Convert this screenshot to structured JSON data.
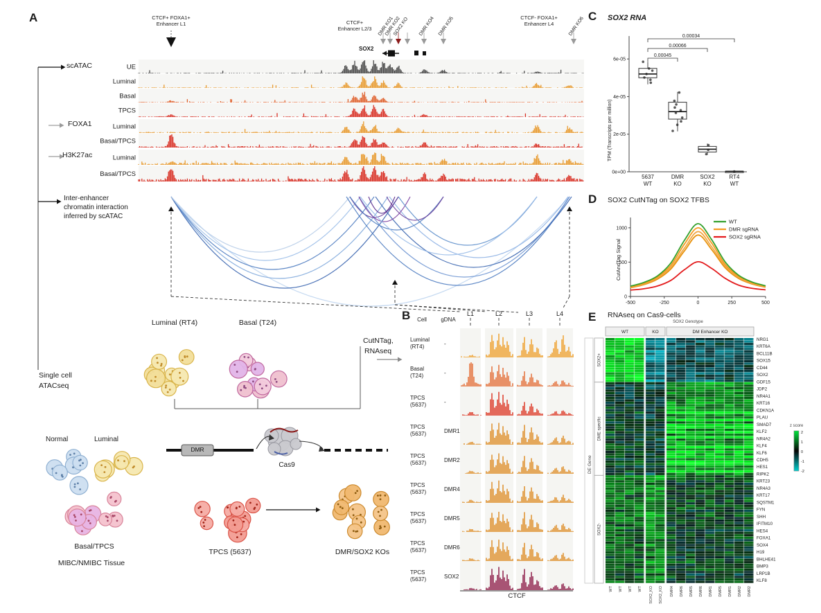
{
  "panelA": {
    "label": "A",
    "enhancers": [
      {
        "line1": "CTCF+ FOXA1+",
        "line2": "Enhancer L1"
      },
      {
        "line1": "CTCF+",
        "line2": "Enhancer L2/3"
      },
      {
        "line1": "CTCF- FOXA1+",
        "line2": "Enhancer L4"
      }
    ],
    "ko_labels": [
      "DMR KO1",
      "DMR KO2",
      "SOX2 KO",
      "DMR KO4",
      "DMR KO5",
      "DMR KO6"
    ],
    "gene_label": "SOX2",
    "track_groups": [
      {
        "name": "scATAC",
        "rows": [
          "UE",
          "Luminal",
          "Basal",
          "TPCS"
        ]
      },
      {
        "name": "FOXA1",
        "rows": [
          "Luminal",
          "Basal/TPCS"
        ]
      },
      {
        "name": "H3K27ac",
        "rows": [
          "Luminal",
          "Basal/TPCS"
        ]
      }
    ],
    "track_row_colors": [
      "#4a4a4a",
      "#E89A2E",
      "#E0622E",
      "#D93025",
      "#E89A2E",
      "#D93025",
      "#E89A2E",
      "#D93025"
    ],
    "interaction_label": [
      "Inter-enhancer",
      "chromatin interaction",
      "inferred by scATAC"
    ],
    "l_labels": [
      "L1",
      "L2",
      "L3",
      "L4"
    ],
    "schematic": {
      "luminal_rt4": "Luminal (RT4)",
      "basal_t24": "Basal (T24)",
      "cutntag": "CutNTag,",
      "rnaseq": "RNAseq",
      "single_cell": [
        "Single cell",
        "ATACseq"
      ],
      "normal": "Normal",
      "luminal": "Luminal",
      "basal_tpcs": "Basal/TPCS",
      "tissue": "MIBC/NMIBC Tissue",
      "dmr_box": "DMR",
      "cas9": "Cas9",
      "tpcs": "TPCS (5637)",
      "kos": "DMR/SOX2 KOs"
    }
  },
  "panelB": {
    "label": "B",
    "headers": {
      "cell": "Cell",
      "gdna": "gDNA"
    },
    "rows": [
      {
        "cell": [
          "Luminal",
          "(RT4)"
        ],
        "gdna": "-",
        "color": "#EFA12F",
        "strengths": [
          0.08,
          1.0,
          0.85,
          0.9
        ]
      },
      {
        "cell": [
          "Basal",
          "(T24)"
        ],
        "gdna": "-",
        "color": "#E4703A",
        "strengths": [
          1.0,
          0.9,
          0.6,
          0.25
        ]
      },
      {
        "cell": [
          "TPCS",
          "(5637)"
        ],
        "gdna": "-",
        "color": "#DD3A28",
        "strengths": [
          0.12,
          1.0,
          0.55,
          0.2
        ]
      },
      {
        "cell": [
          "TPCS",
          "(5637)"
        ],
        "gdna": "DMR1",
        "color": "#DE8F2A",
        "strengths": [
          0.1,
          0.9,
          0.8,
          0.35
        ]
      },
      {
        "cell": [
          "TPCS",
          "(5637)"
        ],
        "gdna": "DMR2",
        "color": "#DE8F2A",
        "strengths": [
          0.1,
          0.85,
          0.75,
          0.3
        ]
      },
      {
        "cell": [
          "TPCS",
          "(5637)"
        ],
        "gdna": "DMR4",
        "color": "#DE8F2A",
        "strengths": [
          0.1,
          0.9,
          0.7,
          0.3
        ]
      },
      {
        "cell": [
          "TPCS",
          "(5637)"
        ],
        "gdna": "DMR5",
        "color": "#DE8F2A",
        "strengths": [
          0.1,
          0.85,
          0.8,
          0.35
        ]
      },
      {
        "cell": [
          "TPCS",
          "(5637)"
        ],
        "gdna": "DMR6",
        "color": "#DE8F2A",
        "strengths": [
          0.1,
          0.9,
          0.75,
          0.3
        ]
      },
      {
        "cell": [
          "TPCS",
          "(5637)"
        ],
        "gdna": "SOX2",
        "color": "#8E1F4B",
        "strengths": [
          0.06,
          0.95,
          0.85,
          0.25
        ]
      }
    ],
    "footer": "CTCF"
  },
  "panelC": {
    "label": "C"
  },
  "panelD": {
    "label": "D"
  },
  "panelE": {
    "label": "E"
  },
  "chart_data": [
    {
      "id": "sox2_rna_boxplot",
      "type": "boxplot",
      "title": "SOX2 RNA",
      "ylabel": "TPM (Transcripts per million)",
      "ytick_labels": [
        "6e-05",
        "4e-05",
        "2e-05",
        "0e+00"
      ],
      "ytick_values": [
        6e-05,
        4e-05,
        2e-05,
        0
      ],
      "ylim": [
        0,
        7e-05
      ],
      "groups": [
        {
          "label_line1": "5637",
          "label_line2": "WT",
          "median": 5.2e-05,
          "q1": 5e-05,
          "q3": 5.5e-05,
          "whisker_low": 4.65e-05,
          "whisker_high": 5.85e-05,
          "points": [
            4.7e-05,
            4.9e-05,
            5.05e-05,
            5.2e-05,
            5.35e-05,
            5.5e-05,
            5.85e-05
          ]
        },
        {
          "label_line1": "DMR",
          "label_line2": "KO",
          "median": 3.2e-05,
          "q1": 2.8e-05,
          "q3": 3.7e-05,
          "whisker_low": 2.15e-05,
          "whisker_high": 4.25e-05,
          "points": [
            2.2e-05,
            2.5e-05,
            2.7e-05,
            2.9e-05,
            3.1e-05,
            3.25e-05,
            3.4e-05,
            3.6e-05,
            3.8e-05,
            4.2e-05
          ]
        },
        {
          "label_line1": "SOX2",
          "label_line2": "KO",
          "median": 1.2e-05,
          "q1": 1.05e-05,
          "q3": 1.35e-05,
          "whisker_low": 9e-06,
          "whisker_high": 1.5e-05,
          "points": [
            9.5e-06,
            1.2e-05,
            1.45e-05
          ]
        },
        {
          "label_line1": "RT4",
          "label_line2": "WT",
          "median": 2e-07,
          "q1": 1e-07,
          "q3": 3e-07,
          "whisker_low": 5e-08,
          "whisker_high": 4e-07,
          "points": [
            2e-07
          ]
        }
      ],
      "pvalues": [
        {
          "from": 0,
          "to": 1,
          "label": "0.00045"
        },
        {
          "from": 0,
          "to": 2,
          "label": "0.00066"
        },
        {
          "from": 0,
          "to": 3,
          "label": "0.00034"
        }
      ]
    },
    {
      "id": "cutntag_profile",
      "type": "line",
      "title": "SOX2 CutNTag on SOX2 TFBS",
      "ylabel": "CutAndTag Signal",
      "xticks": [
        -500,
        -250,
        0,
        250,
        500
      ],
      "yticks": [
        0,
        500,
        1000
      ],
      "ylim": [
        0,
        1150
      ],
      "x": [
        -500,
        -400,
        -300,
        -200,
        -100,
        0,
        100,
        200,
        300,
        400,
        500
      ],
      "series": [
        {
          "name": "WT",
          "color": "#33A02C",
          "values": [
            150,
            205,
            300,
            490,
            820,
            1060,
            830,
            505,
            310,
            210,
            155
          ]
        },
        {
          "name": "DMR sgRNA",
          "color": "#F59B20",
          "values": [
            140,
            190,
            285,
            455,
            765,
            1000,
            780,
            470,
            295,
            200,
            148
          ]
        },
        {
          "name": "DMR sgRNA",
          "color": "#F0A845",
          "values": [
            132,
            182,
            268,
            425,
            705,
            945,
            725,
            445,
            278,
            190,
            140
          ]
        },
        {
          "name": "DMR sgRNA",
          "color": "#E8920C",
          "values": [
            126,
            172,
            252,
            402,
            665,
            895,
            685,
            420,
            262,
            182,
            134
          ]
        },
        {
          "name": "SOX2 sgRNA",
          "color": "#E31A1C",
          "values": [
            92,
            112,
            152,
            235,
            390,
            505,
            410,
            265,
            165,
            118,
            96
          ]
        }
      ],
      "legend": [
        "WT",
        "DMR sgRNA",
        "SOX2 sgRNA"
      ]
    },
    {
      "id": "rnaseq_heatmap",
      "type": "heatmap",
      "title": "RNAseq on Cas9-cells",
      "top_label": "SOX2 Genotype",
      "col_groups": [
        {
          "label": "WT",
          "n": 4
        },
        {
          "label": "KO",
          "n": 2
        },
        {
          "label": "DM Enhancer KO",
          "n": 9
        }
      ],
      "col_labels": [
        "WT",
        "WT",
        "WT",
        "WT",
        "SOX2_KO",
        "SOX2_KO",
        "DMR4",
        "DMR6",
        "DMR5",
        "DMR6",
        "DMR1",
        "DMR5",
        "DMR1",
        "DMR2",
        "DMR2"
      ],
      "row_groups": [
        {
          "label": "SOX2+",
          "rows": 18
        },
        {
          "label": "DME specific",
          "rows": 38
        },
        {
          "label": "SOX2-",
          "rows": 44
        }
      ],
      "side_label": "DE Gene",
      "gene_labels": [
        "NRG1",
        "KRT6A",
        "BCL11B",
        "SOX15",
        "CD44",
        "SOX2",
        "GDF15",
        "JDP2",
        "NR4A1",
        "KRT16",
        "CDKN1A",
        "PLAU",
        "SMAD7",
        "KLF2",
        "NR4A2",
        "KLF4",
        "KLF6",
        "CDH5",
        "HES1",
        "RIPK2",
        "KRT23",
        "NR4A3",
        "KRT17",
        "SQSTM1",
        "FYN",
        "SHH",
        "IFITM10",
        "HES4",
        "FOXA1",
        "SOX4",
        "H19",
        "BHLHE41",
        "BMP3",
        "LRP1B",
        "KLF8"
      ],
      "colorbar": {
        "label": "z score",
        "ticks": [
          "2",
          "1",
          "0",
          "-1",
          "-2"
        ],
        "high": "#00E43C",
        "mid": "#050505",
        "low": "#00D2D2"
      },
      "expression_pattern": {
        "SOX2+": {
          "WT": 1.6,
          "KO": -0.9,
          "DM Enhancer KO": -0.5
        },
        "DME specific": {
          "WT": 0.1,
          "KO": -0.1,
          "DM Enhancer KO": 1.1
        },
        "SOX2-": {
          "WT": 0.55,
          "KO": 0.9,
          "DM Enhancer KO": 0.15
        }
      }
    }
  ]
}
